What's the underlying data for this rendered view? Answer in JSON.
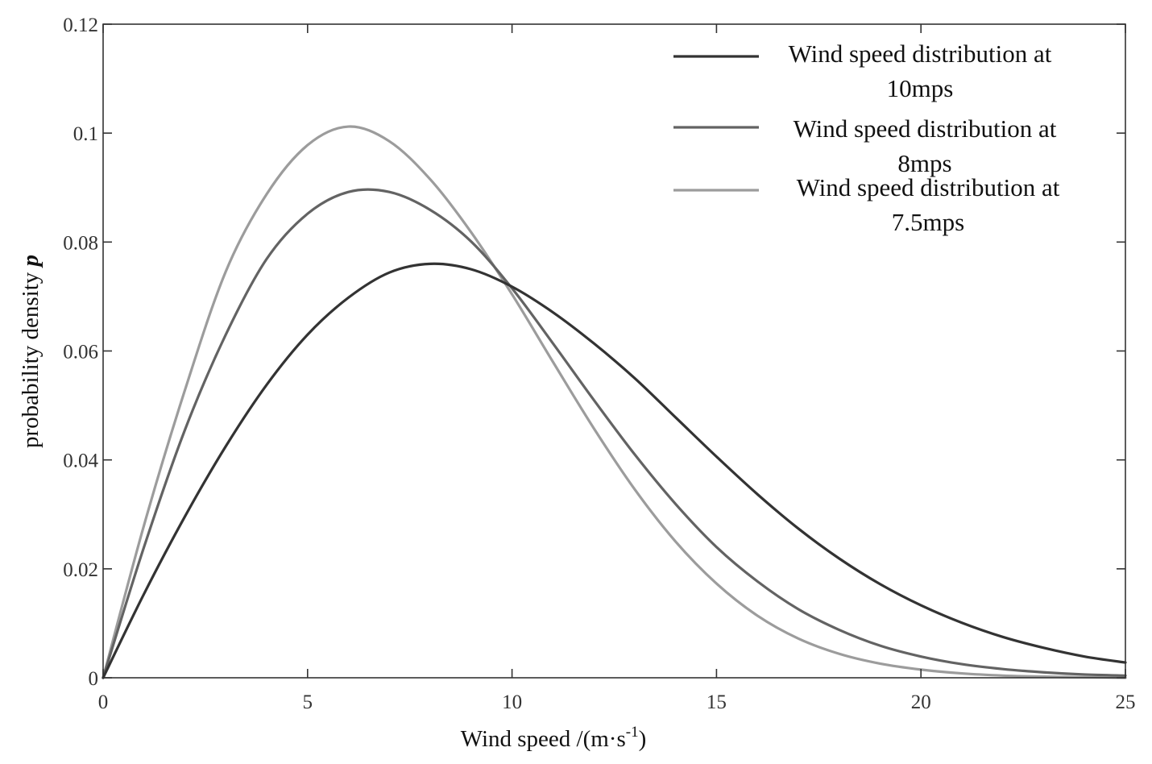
{
  "chart_data": {
    "type": "line",
    "title": "",
    "xlabel": "Wind speed /(m·s-1)",
    "xlabel_parts": {
      "main": "Wind speed /(m·s",
      "superscript": "-1",
      "close": ")"
    },
    "ylabel": "probability density p",
    "ylabel_parts": {
      "main": "probability density ",
      "italic": "p"
    },
    "xlim": [
      0,
      25
    ],
    "ylim": [
      0,
      0.12
    ],
    "x_ticks": [
      0,
      5,
      10,
      15,
      20,
      25
    ],
    "x_tick_labels": [
      "0",
      "5",
      "10",
      "15",
      "20",
      "25"
    ],
    "y_ticks": [
      0,
      0.02,
      0.04,
      0.06,
      0.08,
      0.1,
      0.12
    ],
    "y_tick_labels": [
      "0",
      "0.02",
      "0.04",
      "0.06",
      "0.08",
      "0.1",
      "0.12"
    ],
    "grid": false,
    "legend_position": "top-right",
    "x": [
      0,
      1,
      2,
      3,
      4,
      5,
      6,
      7,
      8,
      9,
      10,
      11,
      12,
      13,
      14,
      15,
      16,
      17,
      18,
      19,
      20,
      21,
      22,
      23,
      24,
      25
    ],
    "series": [
      {
        "name": "Wind speed distribution at 10mps",
        "legend_lines": [
          "Wind speed distribution at",
          "10mps"
        ],
        "color": "#333333",
        "values": [
          0,
          0.0154,
          0.0296,
          0.0425,
          0.0538,
          0.063,
          0.0698,
          0.0744,
          0.076,
          0.075,
          0.0718,
          0.0671,
          0.0614,
          0.055,
          0.0478,
          0.0406,
          0.0337,
          0.0274,
          0.0219,
          0.0172,
          0.0133,
          0.0101,
          0.0075,
          0.0055,
          0.0039,
          0.0028
        ]
      },
      {
        "name": "Wind speed distribution at 8mps",
        "legend_lines": [
          "Wind speed distribution at",
          "8mps"
        ],
        "color": "#636363",
        "values": [
          0,
          0.024,
          0.0455,
          0.063,
          0.0769,
          0.0852,
          0.0892,
          0.0892,
          0.0859,
          0.0801,
          0.0715,
          0.0614,
          0.051,
          0.041,
          0.0319,
          0.024,
          0.0177,
          0.0126,
          0.0088,
          0.0059,
          0.0039,
          0.0025,
          0.0016,
          0.001,
          0.0006,
          0.0004
        ]
      },
      {
        "name": "Wind speed distribution at 7.5mps",
        "legend_lines": [
          "Wind speed distribution at",
          "7.5mps"
        ],
        "color": "#9c9c9c",
        "values": [
          0,
          0.028,
          0.0528,
          0.0746,
          0.0888,
          0.0978,
          0.1012,
          0.0985,
          0.0915,
          0.0818,
          0.0704,
          0.058,
          0.0458,
          0.0346,
          0.025,
          0.0173,
          0.0114,
          0.0072,
          0.0044,
          0.0026,
          0.0015,
          0.0008,
          0.0004,
          0.0002,
          0.0001,
          0.0
        ]
      }
    ]
  }
}
